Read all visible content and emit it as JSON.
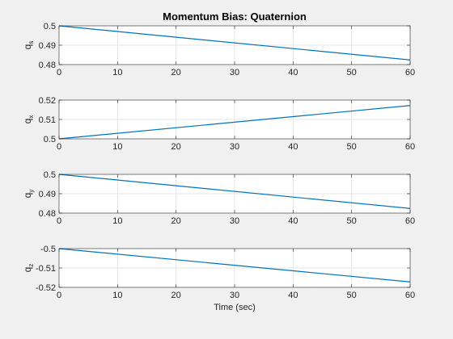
{
  "chart_data": [
    {
      "type": "line",
      "title": "Momentum Bias: Quaternion",
      "ylabel_base": "q",
      "ylabel_sub": "s",
      "xlabel": "",
      "xlim": [
        0,
        60
      ],
      "ylim": [
        0.48,
        0.5
      ],
      "xticks": [
        0,
        10,
        20,
        30,
        40,
        50,
        60
      ],
      "yticks": [
        "0.48",
        "0.49",
        "0.5"
      ],
      "grid": true,
      "series": [
        {
          "x": [
            0,
            60
          ],
          "y": [
            0.5,
            0.4824
          ]
        }
      ]
    },
    {
      "type": "line",
      "title": "",
      "ylabel_base": "q",
      "ylabel_sub": "x",
      "xlabel": "",
      "xlim": [
        0,
        60
      ],
      "ylim": [
        0.5,
        0.52
      ],
      "xticks": [
        0,
        10,
        20,
        30,
        40,
        50,
        60
      ],
      "yticks": [
        "0.5",
        "0.51",
        "0.52"
      ],
      "grid": true,
      "series": [
        {
          "x": [
            0,
            60
          ],
          "y": [
            0.5,
            0.5172
          ]
        }
      ]
    },
    {
      "type": "line",
      "title": "",
      "ylabel_base": "q",
      "ylabel_sub": "y",
      "xlabel": "",
      "xlim": [
        0,
        60
      ],
      "ylim": [
        0.48,
        0.5
      ],
      "xticks": [
        0,
        10,
        20,
        30,
        40,
        50,
        60
      ],
      "yticks": [
        "0.48",
        "0.49",
        "0.5"
      ],
      "grid": true,
      "series": [
        {
          "x": [
            0,
            60
          ],
          "y": [
            0.5,
            0.4824
          ]
        }
      ]
    },
    {
      "type": "line",
      "title": "",
      "ylabel_base": "q",
      "ylabel_sub": "z",
      "xlabel": "Time (sec)",
      "xlim": [
        0,
        60
      ],
      "ylim": [
        -0.52,
        -0.5
      ],
      "xticks": [
        0,
        10,
        20,
        30,
        40,
        50,
        60
      ],
      "yticks": [
        "-0.52",
        "-0.51",
        "-0.5"
      ],
      "grid": true,
      "series": [
        {
          "x": [
            0,
            60
          ],
          "y": [
            -0.5,
            -0.5172
          ]
        }
      ]
    }
  ],
  "colors": {
    "line": "#0072BD",
    "grid": "#e6e6e6",
    "axes": "#262626",
    "figure_bg": "#f0f0f0",
    "axes_bg": "#ffffff"
  }
}
